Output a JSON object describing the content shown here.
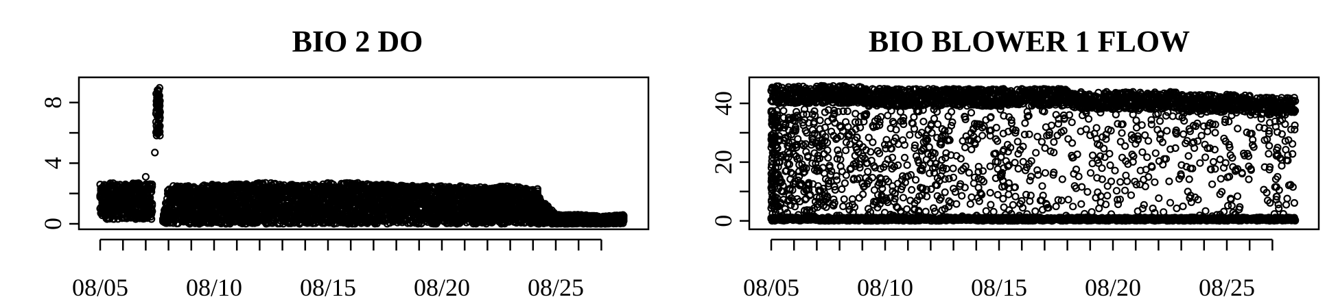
{
  "chart_data": [
    {
      "type": "scatter",
      "title": "BIO 2 DO",
      "xlabel": "",
      "ylabel": "",
      "x_range": [
        "2019-08-05",
        "2019-08-28"
      ],
      "ylim": [
        0,
        9.3
      ],
      "y_ticks": [
        0,
        4,
        8
      ],
      "y_minor_ticks": [
        0,
        2,
        4,
        6,
        8
      ],
      "x_tick_labels": [
        "08/05",
        "08/10",
        "08/15",
        "08/20",
        "08/25"
      ],
      "x_minor_tick_count": 23,
      "grid": false,
      "series": [
        {
          "x": [
            "08/05 00:00",
            "08/05 12:00",
            "08/06 00:00",
            "08/06 12:00",
            "08/07 00:00",
            "08/07 06:00",
            "08/07 10:00",
            "08/07 12:00",
            "08/07 14:00",
            "08/07 16:00",
            "08/07 18:00",
            "08/08 00:00",
            "08/08 12:00",
            "08/09 00:00",
            "08/10 00:00",
            "08/11 00:00",
            "08/12 00:00",
            "08/13 00:00",
            "08/14 00:00",
            "08/15 00:00",
            "08/16 00:00",
            "08/17 00:00",
            "08/18 00:00",
            "08/19 00:00",
            "08/20 00:00",
            "08/21 00:00",
            "08/22 00:00",
            "08/23 00:00",
            "08/24 00:00",
            "08/25 00:00",
            "08/26 00:00",
            "08/27 00:00",
            "08/28 00:00"
          ],
          "y": [
            2.6,
            2.7,
            2.6,
            2.7,
            2.7,
            3.1,
            4.8,
            9.0,
            8.0,
            6.5,
            0.3,
            2.5,
            2.5,
            2.6,
            2.6,
            2.7,
            2.8,
            2.6,
            2.6,
            2.7,
            2.8,
            2.6,
            2.6,
            2.5,
            2.5,
            2.5,
            2.4,
            2.5,
            2.3,
            0.6,
            0.6,
            0.5,
            0.6
          ],
          "min_band": [
            0.3,
            0.3,
            0.3,
            0.3,
            0.3,
            0.3,
            0.3,
            0.3,
            0.3,
            0.3,
            0.1,
            0.0,
            0.0,
            0.0,
            0.0,
            0.0,
            0.0,
            0.0,
            0.0,
            0.0,
            0.0,
            0.0,
            0.0,
            0.0,
            0.0,
            0.0,
            0.0,
            0.0,
            0.0,
            0.0,
            0.0,
            0.0,
            0.0
          ]
        }
      ]
    },
    {
      "type": "scatter",
      "title": "BIO BLOWER 1 FLOW",
      "xlabel": "",
      "ylabel": "",
      "x_range": [
        "2019-08-05",
        "2019-08-28"
      ],
      "ylim": [
        -1,
        47
      ],
      "y_ticks": [
        0,
        20,
        40
      ],
      "y_minor_ticks": [
        0,
        10,
        20,
        30,
        40
      ],
      "x_tick_labels": [
        "08/05",
        "08/10",
        "08/15",
        "08/20",
        "08/25"
      ],
      "x_minor_tick_count": 23,
      "grid": false,
      "series": [
        {
          "upper_band": [
            45,
            45,
            45,
            45,
            44,
            44,
            44,
            44,
            44,
            44,
            44,
            44,
            44,
            43,
            43,
            43,
            43,
            43,
            42,
            42,
            42,
            41,
            41,
            41
          ],
          "lower_band": [
            0.5,
            0.5,
            0.5,
            0.5,
            0.5,
            0.5,
            0.5,
            0.5,
            0.5,
            0.5,
            0.5,
            0.5,
            0.5,
            0.5,
            0.5,
            0.5,
            0.5,
            0.5,
            0.5,
            0.5,
            0.5,
            0.5,
            0.5,
            0.5
          ],
          "scatter_range": [
            0,
            45
          ]
        }
      ]
    }
  ]
}
